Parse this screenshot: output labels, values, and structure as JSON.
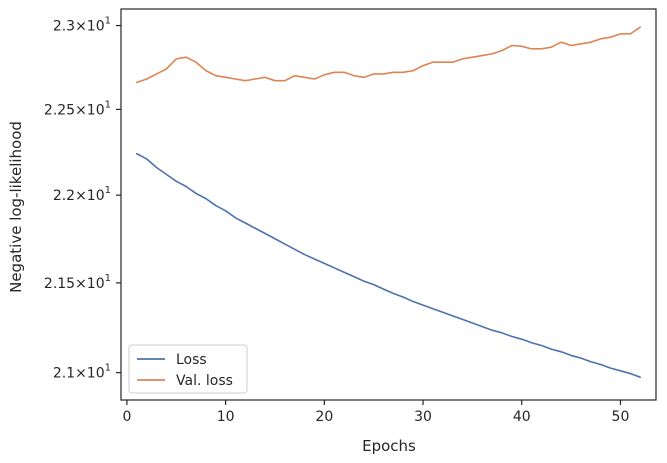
{
  "chart_data": {
    "type": "line",
    "xlabel": "Epochs",
    "ylabel": "Negative log-likelihood",
    "yscale": "log",
    "xlim": [
      -0.6,
      53.6
    ],
    "ylim": [
      20.85,
      23.1
    ],
    "grid": false,
    "legend_position": "lower-left",
    "x_ticks": [
      {
        "value": 0,
        "label": "0"
      },
      {
        "value": 10,
        "label": "10"
      },
      {
        "value": 20,
        "label": "20"
      },
      {
        "value": 30,
        "label": "30"
      },
      {
        "value": 40,
        "label": "40"
      },
      {
        "value": 50,
        "label": "50"
      }
    ],
    "y_ticks": [
      {
        "value": 21.0,
        "mantissa": "2.1",
        "exponent": "1"
      },
      {
        "value": 21.5,
        "mantissa": "2.15",
        "exponent": "1"
      },
      {
        "value": 22.0,
        "mantissa": "2.2",
        "exponent": "1"
      },
      {
        "value": 22.5,
        "mantissa": "2.25",
        "exponent": "1"
      },
      {
        "value": 23.0,
        "mantissa": "2.3",
        "exponent": "1"
      }
    ],
    "x": [
      1,
      2,
      3,
      4,
      5,
      6,
      7,
      8,
      9,
      10,
      11,
      12,
      13,
      14,
      15,
      16,
      17,
      18,
      19,
      20,
      21,
      22,
      23,
      24,
      25,
      26,
      27,
      28,
      29,
      30,
      31,
      32,
      33,
      34,
      35,
      36,
      37,
      38,
      39,
      40,
      41,
      42,
      43,
      44,
      45,
      46,
      47,
      48,
      49,
      50,
      51,
      52
    ],
    "series": [
      {
        "name": "Loss",
        "color": "#4c72b0",
        "values": [
          22.24,
          22.21,
          22.16,
          22.12,
          22.08,
          22.05,
          22.01,
          21.98,
          21.94,
          21.91,
          21.87,
          21.84,
          21.81,
          21.78,
          21.75,
          21.72,
          21.69,
          21.66,
          21.635,
          21.61,
          21.585,
          21.56,
          21.535,
          21.51,
          21.49,
          21.465,
          21.44,
          21.42,
          21.395,
          21.375,
          21.355,
          21.335,
          21.315,
          21.295,
          21.275,
          21.255,
          21.235,
          21.22,
          21.2,
          21.185,
          21.165,
          21.15,
          21.13,
          21.115,
          21.095,
          21.08,
          21.06,
          21.045,
          21.025,
          21.01,
          20.995,
          20.975
        ]
      },
      {
        "name": "Val. loss",
        "color": "#dd8452",
        "values": [
          22.66,
          22.68,
          22.71,
          22.74,
          22.8,
          22.81,
          22.78,
          22.73,
          22.7,
          22.69,
          22.68,
          22.67,
          22.68,
          22.69,
          22.67,
          22.67,
          22.7,
          22.69,
          22.68,
          22.705,
          22.72,
          22.72,
          22.7,
          22.69,
          22.71,
          22.71,
          22.72,
          22.72,
          22.73,
          22.76,
          22.78,
          22.78,
          22.78,
          22.8,
          22.81,
          22.82,
          22.83,
          22.85,
          22.88,
          22.875,
          22.86,
          22.86,
          22.87,
          22.9,
          22.88,
          22.89,
          22.9,
          22.92,
          22.93,
          22.95,
          22.95,
          22.99
        ]
      }
    ]
  }
}
